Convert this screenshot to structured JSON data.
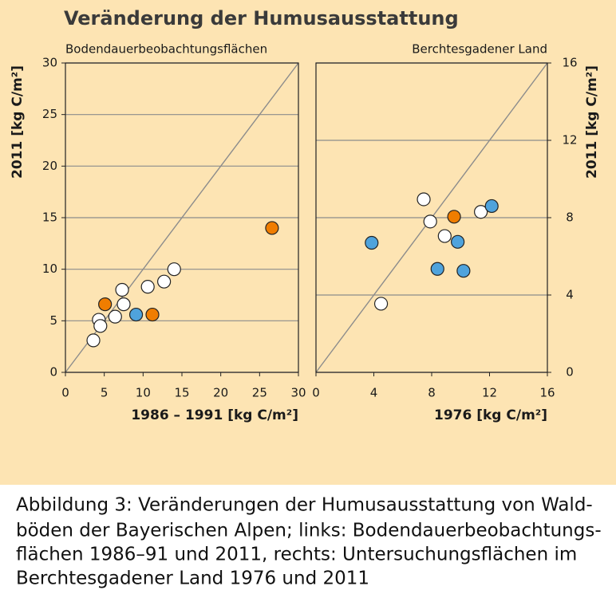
{
  "title": "Veränderung der Humusausstattung",
  "caption": [
    "Abbildung 3: Veränderungen der Humusausstattung von Wald-",
    "böden der Bayerischen Alpen; links: Bodendauerbeobachtungs-",
    "flächen 1986–91 und 2011, rechts: Untersuchungsflächen im",
    "Berchtesgadener Land 1976 und 2011"
  ],
  "chart_data": [
    {
      "type": "scatter",
      "title": "Bodendauerbeobachtungsflächen",
      "xlabel": "1986 – 1991 [kg C/m²]",
      "ylabel": "2011 [kg C/m²]",
      "xlim": [
        0,
        30
      ],
      "ylim": [
        0,
        30
      ],
      "xticks": [
        0,
        5,
        10,
        15,
        20,
        25,
        30
      ],
      "yticks": [
        0,
        5,
        10,
        15,
        20,
        25,
        30
      ],
      "grid": true,
      "identity_line": true,
      "y_axis_side": "left",
      "series": [
        {
          "color": "#ffffff",
          "x": [
            3.6,
            4.3,
            4.5,
            6.4,
            7.3,
            7.5,
            10.6,
            12.7,
            14.0
          ],
          "values": [
            3.1,
            5.1,
            4.5,
            5.4,
            8.0,
            6.6,
            8.3,
            8.8,
            10.0
          ]
        },
        {
          "color": "#f07d00",
          "x": [
            5.1,
            11.2,
            26.6
          ],
          "values": [
            6.6,
            5.6,
            14.0
          ]
        },
        {
          "color": "#4fa3dc",
          "x": [
            9.1
          ],
          "values": [
            5.6
          ]
        }
      ]
    },
    {
      "type": "scatter",
      "title": "Berchtesgadener Land",
      "xlabel": "1976 [kg C/m²]",
      "ylabel": "2011 [kg C/m²]",
      "xlim": [
        0,
        16
      ],
      "ylim": [
        0,
        16
      ],
      "xticks": [
        0,
        4,
        8,
        12,
        16
      ],
      "yticks": [
        0,
        4,
        8,
        12,
        16
      ],
      "grid": true,
      "identity_line": true,
      "y_axis_side": "right",
      "series": [
        {
          "color": "#ffffff",
          "x": [
            7.45,
            7.9,
            8.9,
            11.4,
            4.5
          ],
          "values": [
            8.95,
            7.8,
            7.05,
            8.3,
            3.55
          ]
        },
        {
          "color": "#f07d00",
          "x": [
            9.55
          ],
          "values": [
            8.05
          ]
        },
        {
          "color": "#4fa3dc",
          "x": [
            3.85,
            9.8,
            8.4,
            10.2,
            12.15
          ],
          "values": [
            6.7,
            6.75,
            5.35,
            5.25,
            8.6
          ]
        }
      ]
    }
  ]
}
